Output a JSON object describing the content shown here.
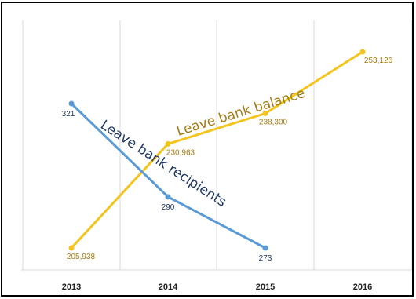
{
  "chart_data": {
    "type": "line",
    "title": "",
    "xlabel": "",
    "ylabel": "",
    "categories": [
      "2013",
      "2014",
      "2015",
      "2016"
    ],
    "grid": "vertical",
    "legend": "none",
    "series": [
      {
        "name": "Leave bank balance",
        "values": [
          205938,
          230963,
          238300,
          253126
        ],
        "labels": [
          "205,938",
          "230,963",
          "238,300",
          "253,126"
        ],
        "color": "#F4C41E",
        "label_color": "#A67C10"
      },
      {
        "name": "Leave bank recipients",
        "values": [
          321,
          290,
          273,
          null
        ],
        "labels": [
          "321",
          "290",
          "273",
          ""
        ],
        "color": "#5B9BD5",
        "label_color": "#203864"
      }
    ],
    "annotations": [
      "Leave bank balance",
      "Leave bank recipients"
    ]
  }
}
